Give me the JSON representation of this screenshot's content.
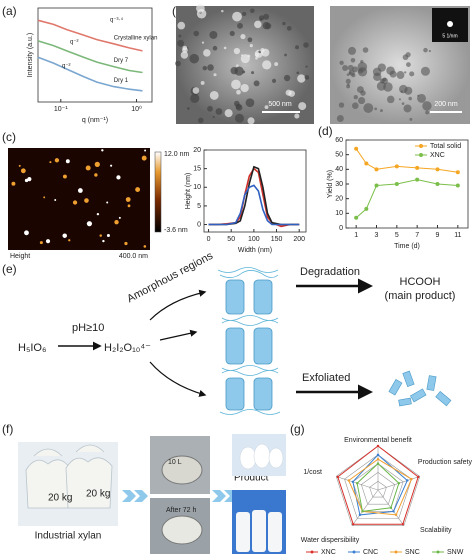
{
  "figure": {
    "panel_labels": [
      "(a)",
      "(b)",
      "(c)",
      "(d)",
      "(e)",
      "(f)",
      "(g)"
    ],
    "b": {
      "scale_bars": [
        "500 nm",
        "200 nm"
      ],
      "inset_scale": "5 1/nm"
    },
    "c": {
      "colorbar_max": "12.0 nm",
      "colorbar_min": "-3.6 nm",
      "image_label": "Height",
      "scale_bar": "400.0 nm"
    },
    "e": {
      "amorphous": "Amorphous regions",
      "ph": "pH≥10",
      "reagent": "H₅IO₆",
      "species": "H₂I₂O₁₀⁴⁻",
      "degradation": "Degradation",
      "product": "HCOOH",
      "product_note": "(main product)",
      "exfoliated": "Exfoliated"
    },
    "f": {
      "bag_labels": [
        "20 kg",
        "20 kg"
      ],
      "xylan": "Industrial xylan",
      "reactor": "10 L",
      "after": "After 72 h",
      "product": "Product"
    }
  },
  "chart_data": [
    {
      "type": "line",
      "log_x": true,
      "log_y": true,
      "x_label": "q (nm⁻¹)",
      "y_label": "Intensity (a.u.)",
      "x": [
        0.05,
        0.08,
        0.12,
        0.2,
        0.3,
        0.5,
        0.8,
        1.2
      ],
      "xlim": [
        0.05,
        1.6
      ],
      "xticks": [
        {
          "value": 0.1,
          "label": "10⁻¹"
        },
        {
          "value": 1,
          "label": "10⁰"
        }
      ],
      "ylim": [
        0.1,
        1000
      ],
      "annotations": [
        "q⁻³·⁴",
        "q⁻²",
        "q⁻²"
      ],
      "series": [
        {
          "name": "Crystalline xylan",
          "color": "#e0786c",
          "values": [
            300,
            200,
            120,
            70,
            45,
            30,
            20,
            15
          ]
        },
        {
          "name": "Dry 7",
          "color": "#7cb87a",
          "values": [
            40,
            25,
            15,
            8,
            5,
            3.2,
            2.2,
            1.8
          ]
        },
        {
          "name": "Dry 1",
          "color": "#7aa6d0",
          "values": [
            8,
            4.5,
            2.5,
            1.2,
            0.7,
            0.45,
            0.35,
            0.3
          ]
        }
      ]
    },
    {
      "type": "line",
      "x_label": "Width (nm)",
      "y_label": "Height (nm)",
      "x": [
        0,
        20,
        40,
        60,
        70,
        80,
        90,
        100,
        110,
        120,
        130,
        140,
        160,
        180,
        200
      ],
      "xlim": [
        -10,
        215
      ],
      "xticks": [
        0,
        50,
        100,
        150,
        200
      ],
      "ylim": [
        -2,
        20
      ],
      "yticks": [
        0,
        5,
        10,
        15,
        20
      ],
      "series": [
        {
          "color": "#d0302a",
          "values": [
            0,
            0,
            0.2,
            0.5,
            2,
            8,
            13,
            15,
            14,
            8,
            2,
            0.5,
            -0.5,
            0,
            0
          ]
        },
        {
          "color": "#222222",
          "values": [
            0,
            0,
            0,
            0.3,
            1,
            5,
            11,
            15.5,
            15,
            10,
            3,
            0.5,
            0,
            0,
            0
          ]
        },
        {
          "color": "#3060c0",
          "values": [
            0,
            0,
            0,
            0.5,
            3,
            8,
            10,
            10.5,
            9,
            4,
            1,
            0,
            0,
            0,
            0
          ]
        }
      ]
    },
    {
      "type": "line",
      "markers": true,
      "x_label": "Time (d)",
      "y_label": "Yield (%)",
      "x": [
        1,
        2,
        3,
        5,
        7,
        9,
        11
      ],
      "xlim": [
        0,
        12
      ],
      "xticks": [
        1,
        3,
        5,
        7,
        9,
        11
      ],
      "ylim": [
        0,
        60
      ],
      "yticks": [
        0,
        10,
        20,
        30,
        40,
        50,
        60
      ],
      "series": [
        {
          "name": "Total solid",
          "color": "#f5a623",
          "values": [
            54,
            44,
            40,
            42,
            41,
            40,
            38
          ]
        },
        {
          "name": "XNC",
          "color": "#7bbf4a",
          "values": [
            7,
            13,
            29,
            30,
            33,
            30,
            29
          ]
        }
      ]
    },
    {
      "type": "radar",
      "axes": [
        "Environmental benefit",
        "Production safety",
        "Scalability",
        "Water dispersibility",
        "1/cost"
      ],
      "rlim": [
        0,
        5
      ],
      "rticks": [
        1,
        2,
        3,
        4,
        5
      ],
      "series": [
        {
          "name": "XNC",
          "color": "#d8302a",
          "values": [
            5,
            4.8,
            4.8,
            4.8,
            4.8
          ]
        },
        {
          "name": "CNC",
          "color": "#3a7fd0",
          "values": [
            4,
            3.5,
            3,
            3.5,
            3
          ]
        },
        {
          "name": "SNC",
          "color": "#f0a030",
          "values": [
            3.5,
            4,
            3.5,
            3,
            3.5
          ]
        },
        {
          "name": "SNW",
          "color": "#6cb84a",
          "values": [
            3,
            2.5,
            2.5,
            3,
            2.5
          ]
        }
      ]
    }
  ]
}
